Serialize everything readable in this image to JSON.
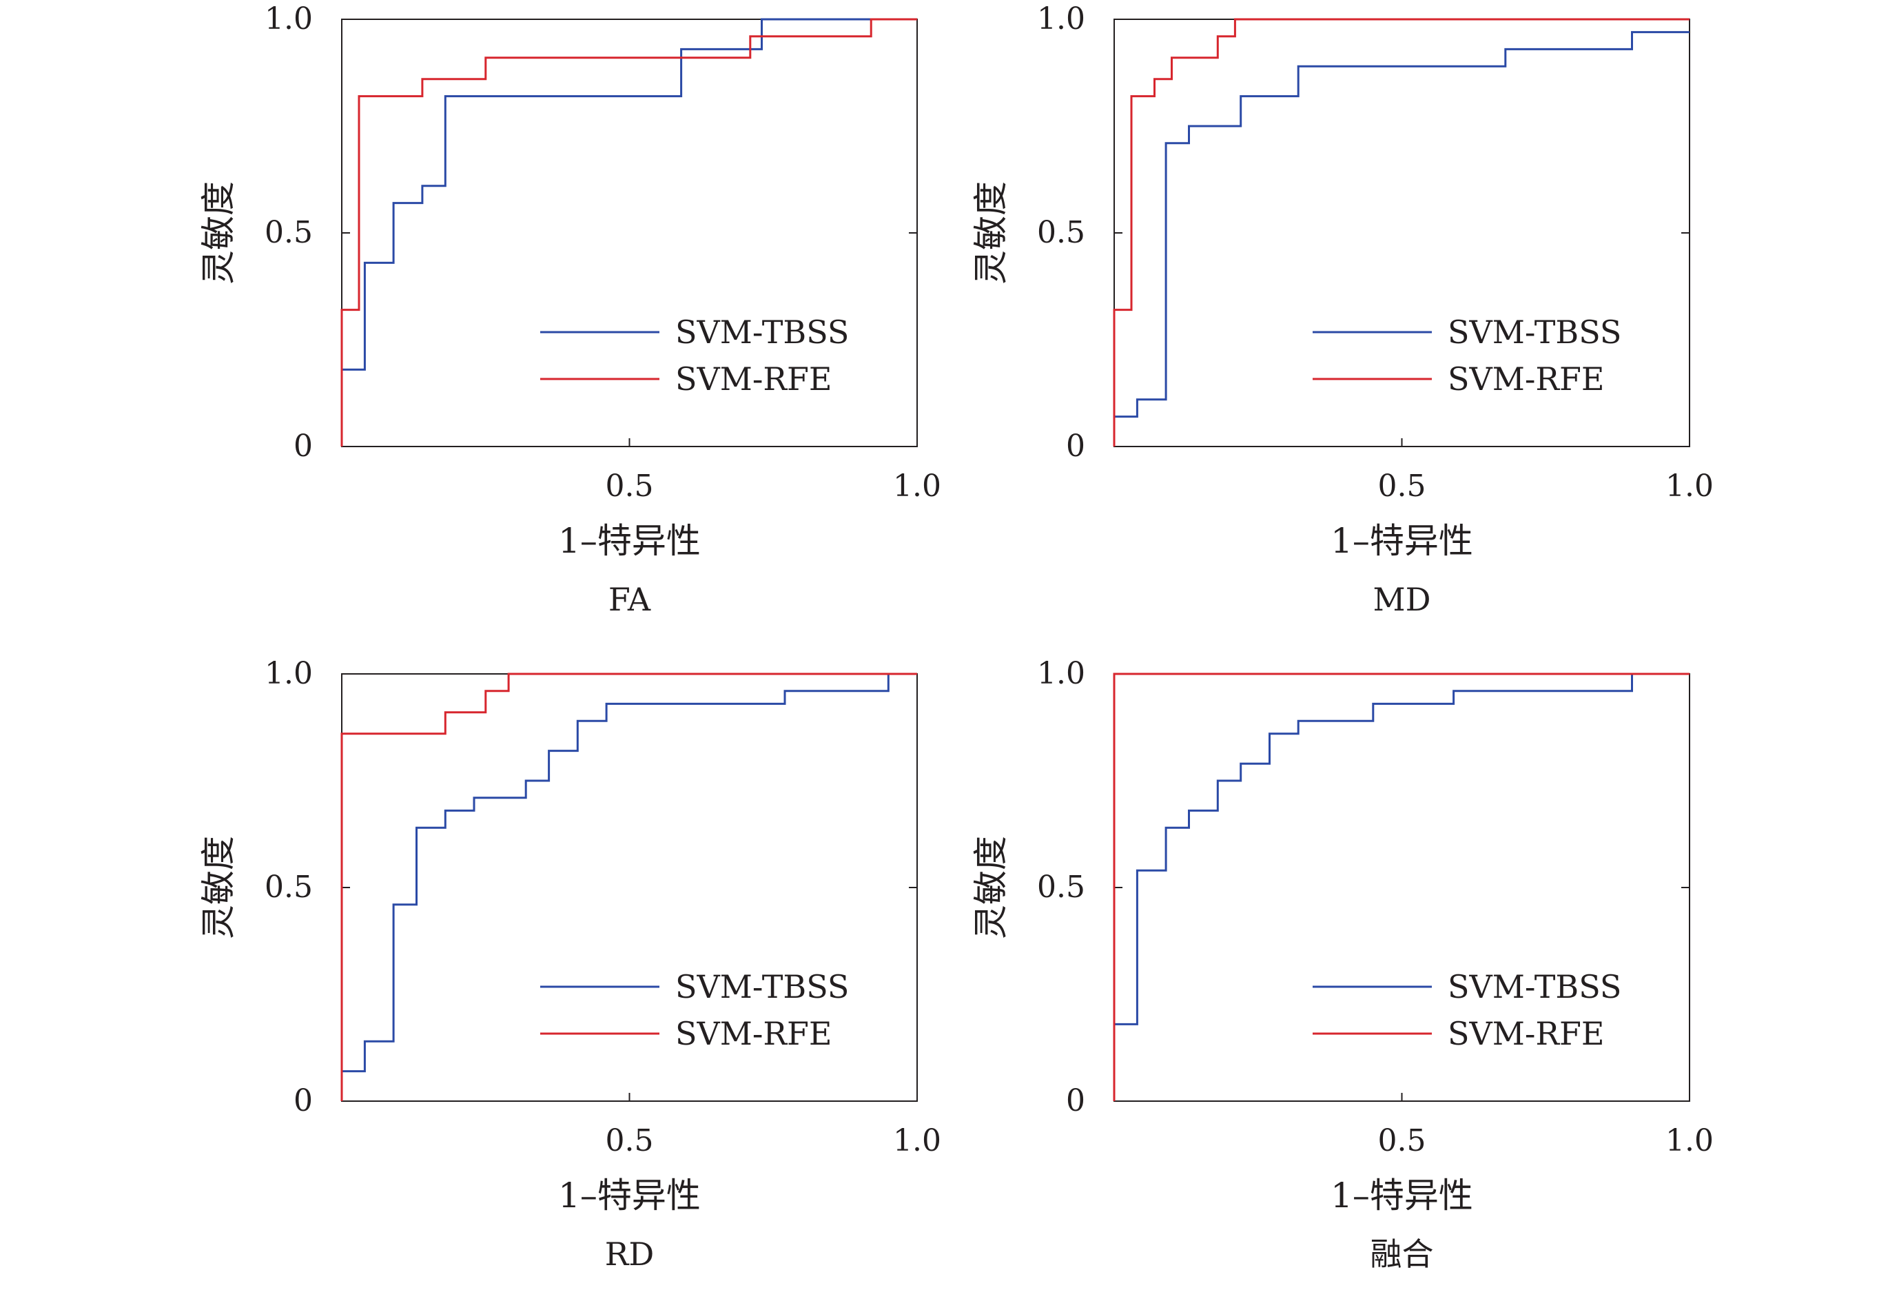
{
  "chart_data": [
    {
      "type": "line",
      "caption": "FA",
      "xlabel": "1–特异性",
      "ylabel": "灵敏度",
      "xlim": [
        0,
        1.0
      ],
      "ylim": [
        0,
        1.0
      ],
      "xticks": [
        "0.5",
        "1.0"
      ],
      "yticks": [
        "0",
        "0.5",
        "1.0"
      ],
      "legend_position": "bottom-right",
      "series": [
        {
          "name": "SVM-TBSS",
          "color": "#2b4aa6",
          "x": [
            0,
            0,
            0.04,
            0.04,
            0.09,
            0.09,
            0.14,
            0.14,
            0.18,
            0.18,
            0.59,
            0.59,
            0.73,
            0.73,
            1.0
          ],
          "y": [
            0,
            0.18,
            0.18,
            0.43,
            0.43,
            0.57,
            0.57,
            0.61,
            0.61,
            0.82,
            0.82,
            0.93,
            0.93,
            1.0,
            1.0
          ]
        },
        {
          "name": "SVM-RFE",
          "color": "#d7262e",
          "x": [
            0,
            0,
            0.03,
            0.03,
            0.14,
            0.14,
            0.25,
            0.25,
            0.71,
            0.71,
            0.92,
            0.92,
            1.0
          ],
          "y": [
            0,
            0.32,
            0.32,
            0.82,
            0.82,
            0.86,
            0.86,
            0.91,
            0.91,
            0.96,
            0.96,
            1.0,
            1.0
          ]
        }
      ]
    },
    {
      "type": "line",
      "caption": "MD",
      "xlabel": "1–特异性",
      "ylabel": "灵敏度",
      "xlim": [
        0,
        1.0
      ],
      "ylim": [
        0,
        1.0
      ],
      "xticks": [
        "0.5",
        "1.0"
      ],
      "yticks": [
        "0",
        "0.5",
        "1.0"
      ],
      "legend_position": "bottom-right",
      "series": [
        {
          "name": "SVM-TBSS",
          "color": "#2b4aa6",
          "x": [
            0,
            0.04,
            0.04,
            0.09,
            0.09,
            0.13,
            0.13,
            0.22,
            0.22,
            0.32,
            0.32,
            0.68,
            0.68,
            0.9,
            0.9,
            1.0
          ],
          "y": [
            0.07,
            0.07,
            0.11,
            0.11,
            0.71,
            0.71,
            0.75,
            0.75,
            0.82,
            0.82,
            0.89,
            0.89,
            0.93,
            0.93,
            0.97,
            0.97
          ]
        },
        {
          "name": "SVM-RFE",
          "color": "#d7262e",
          "x": [
            0,
            0,
            0.03,
            0.03,
            0.07,
            0.07,
            0.1,
            0.1,
            0.18,
            0.18,
            0.21,
            0.21,
            1.0
          ],
          "y": [
            0,
            0.32,
            0.32,
            0.82,
            0.82,
            0.86,
            0.86,
            0.91,
            0.91,
            0.96,
            0.96,
            1.0,
            1.0
          ]
        }
      ]
    },
    {
      "type": "line",
      "caption": "RD",
      "xlabel": "1–特异性",
      "ylabel": "灵敏度",
      "xlim": [
        0,
        1.0
      ],
      "ylim": [
        0,
        1.0
      ],
      "xticks": [
        "0.5",
        "1.0"
      ],
      "yticks": [
        "0",
        "0.5",
        "1.0"
      ],
      "legend_position": "bottom-right",
      "series": [
        {
          "name": "SVM-TBSS",
          "color": "#2b4aa6",
          "x": [
            0,
            0.04,
            0.04,
            0.09,
            0.09,
            0.13,
            0.13,
            0.18,
            0.18,
            0.23,
            0.23,
            0.32,
            0.32,
            0.36,
            0.36,
            0.41,
            0.41,
            0.46,
            0.46,
            0.77,
            0.77,
            0.95,
            0.95,
            1.0
          ],
          "y": [
            0.07,
            0.07,
            0.14,
            0.14,
            0.46,
            0.46,
            0.64,
            0.64,
            0.68,
            0.68,
            0.71,
            0.71,
            0.75,
            0.75,
            0.82,
            0.82,
            0.89,
            0.89,
            0.93,
            0.93,
            0.96,
            0.96,
            1.0,
            1.0
          ]
        },
        {
          "name": "SVM-RFE",
          "color": "#d7262e",
          "x": [
            0,
            0,
            0.18,
            0.18,
            0.25,
            0.25,
            0.29,
            0.29,
            1.0
          ],
          "y": [
            0,
            0.86,
            0.86,
            0.91,
            0.91,
            0.96,
            0.96,
            1.0,
            1.0
          ]
        }
      ]
    },
    {
      "type": "line",
      "caption": "融合",
      "xlabel": "1–特异性",
      "ylabel": "灵敏度",
      "xlim": [
        0,
        1.0
      ],
      "ylim": [
        0,
        1.0
      ],
      "xticks": [
        "0.5",
        "1.0"
      ],
      "yticks": [
        "0",
        "0.5",
        "1.0"
      ],
      "legend_position": "bottom-right",
      "series": [
        {
          "name": "SVM-TBSS",
          "color": "#2b4aa6",
          "x": [
            0,
            0.04,
            0.04,
            0.09,
            0.09,
            0.13,
            0.13,
            0.18,
            0.18,
            0.22,
            0.22,
            0.27,
            0.27,
            0.32,
            0.32,
            0.45,
            0.45,
            0.59,
            0.59,
            0.9,
            0.9,
            1.0
          ],
          "y": [
            0.18,
            0.18,
            0.54,
            0.54,
            0.64,
            0.64,
            0.68,
            0.68,
            0.75,
            0.75,
            0.79,
            0.79,
            0.86,
            0.86,
            0.89,
            0.89,
            0.93,
            0.93,
            0.96,
            0.96,
            1.0,
            1.0
          ]
        },
        {
          "name": "SVM-RFE",
          "color": "#d7262e",
          "x": [
            0,
            0,
            1.0
          ],
          "y": [
            0,
            1.0,
            1.0
          ]
        }
      ]
    }
  ]
}
